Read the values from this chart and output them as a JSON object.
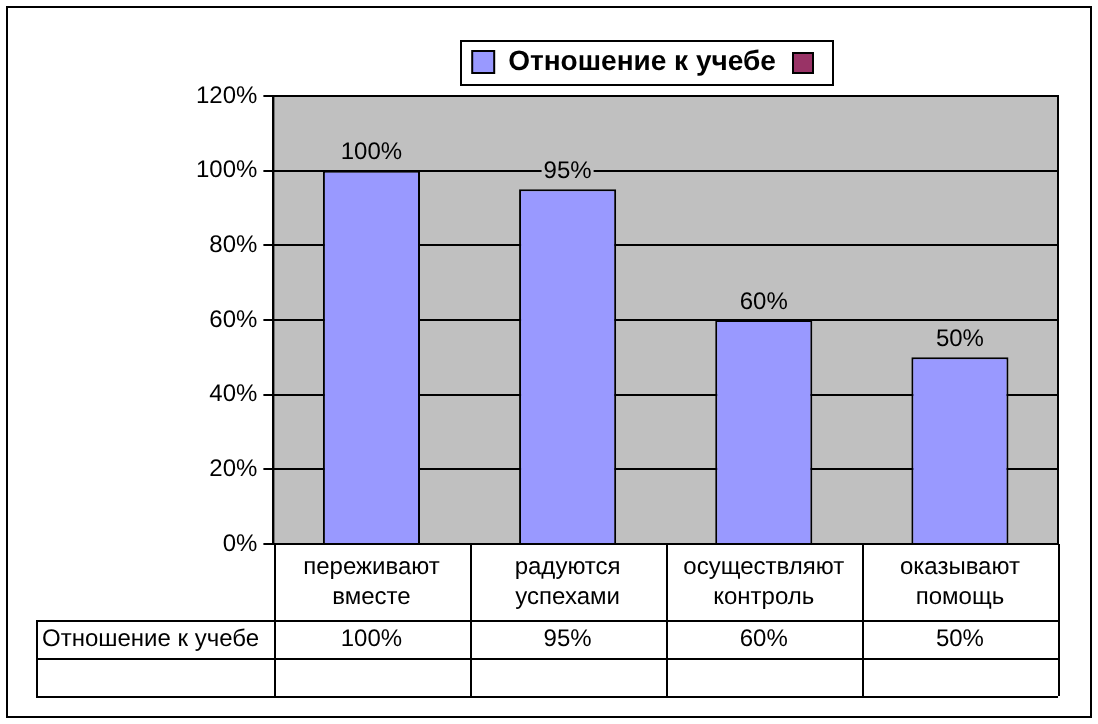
{
  "chart_data": {
    "type": "bar",
    "categories": [
      "переживают вместе",
      "радуются успехами",
      "осуществляют контроль",
      "оказывают помощь"
    ],
    "series": [
      {
        "name": "Отношение к учебе",
        "color": "#9999ff",
        "values": [
          100,
          95,
          60,
          50
        ],
        "value_labels": [
          "100%",
          "95%",
          "60%",
          "50%"
        ]
      }
    ],
    "ylim": [
      0,
      120
    ],
    "yticks": [
      {
        "value": 0,
        "label": "0%"
      },
      {
        "value": 20,
        "label": "20%"
      },
      {
        "value": 40,
        "label": "40%"
      },
      {
        "value": 60,
        "label": "60%"
      },
      {
        "value": 80,
        "label": "80%"
      },
      {
        "value": 100,
        "label": "100%"
      },
      {
        "value": 120,
        "label": "120%"
      }
    ],
    "grid": "y",
    "legend": "top"
  }
}
